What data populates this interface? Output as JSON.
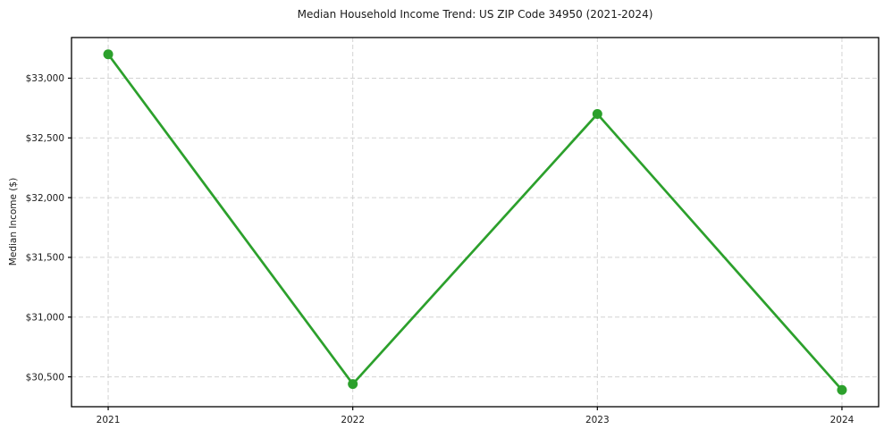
{
  "chart_data": {
    "type": "line",
    "title": "Median Household Income Trend: US ZIP Code 34950 (2021-2024)",
    "xlabel": "",
    "ylabel": "Median Income ($)",
    "categories": [
      "2021",
      "2022",
      "2023",
      "2024"
    ],
    "series": [
      {
        "name": "Median Household Income",
        "values": [
          33200,
          30440,
          32700,
          30390
        ]
      }
    ],
    "ylim": [
      30250,
      33340
    ],
    "yticks": [
      30500,
      31000,
      31500,
      32000,
      32500,
      33000
    ],
    "ytick_labels": [
      "$30,500",
      "$31,000",
      "$31,500",
      "$32,000",
      "$32,500",
      "$33,000"
    ],
    "grid": true,
    "grid_style": "dashed",
    "legend": "none",
    "colors": {
      "line": "#2ca02c",
      "marker": "#2ca02c",
      "grid": "#d3d3d3",
      "spine": "#000000",
      "text": "#1a1a1a",
      "background": "#ffffff"
    },
    "marker": "circle",
    "marker_radius": 5.5,
    "line_width": 2.7
  }
}
